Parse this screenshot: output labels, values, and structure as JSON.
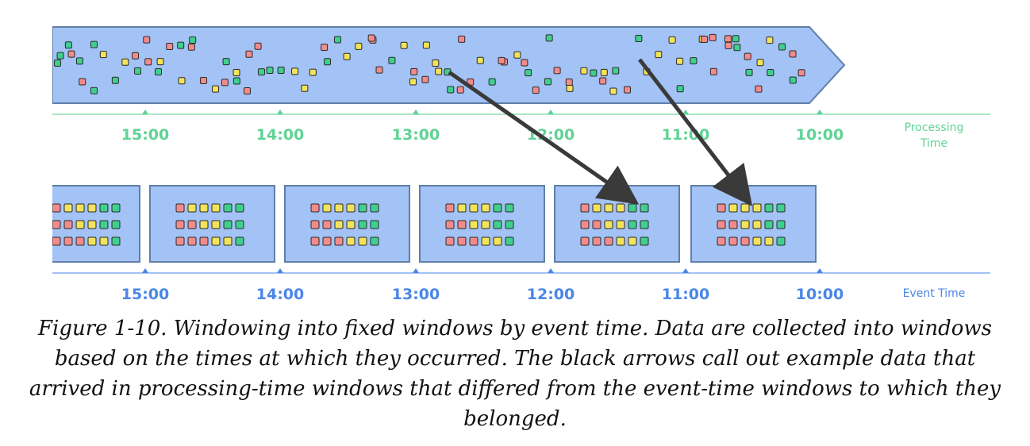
{
  "colors": {
    "stream_fill": "#a3c2f5",
    "stream_border": "#5f7fa8",
    "window_fill": "#a3c2f5",
    "window_border": "#5f7fa8",
    "dot_red": "#f28b8b",
    "dot_yellow": "#f2e35a",
    "dot_green": "#3fcf8e",
    "dot_border": "#2b2b2b",
    "processing_axis": "#a8e6c4",
    "processing_text": "#5fd394",
    "event_axis": "#a3c2f5",
    "event_text": "#4a86e8",
    "arrow": "#3a3a3a"
  },
  "processing_axis": {
    "name_lines": [
      "Processing",
      "Time"
    ],
    "tick_labels": [
      "15:00",
      "14:00",
      "13:00",
      "12:00",
      "11:00",
      "10:00"
    ]
  },
  "event_axis": {
    "name": "Event Time",
    "tick_labels": [
      "15:00",
      "14:00",
      "13:00",
      "12:00",
      "11:00",
      "10:00"
    ]
  },
  "caption": "Figure 1-10. Windowing into fixed windows by event time. Data are collected into windows based on the times at which they occurred. The black arrows call out example data that arrived in processing-time windows that differed from the event-time windows to which they belonged.",
  "window_grid_rows": [
    [
      "red",
      "yellow",
      "yellow",
      "yellow",
      "green",
      "green"
    ],
    [
      "red",
      "red",
      "yellow",
      "yellow",
      "green",
      "green"
    ],
    [
      "red",
      "red",
      "red",
      "yellow",
      "yellow",
      "green"
    ]
  ]
}
